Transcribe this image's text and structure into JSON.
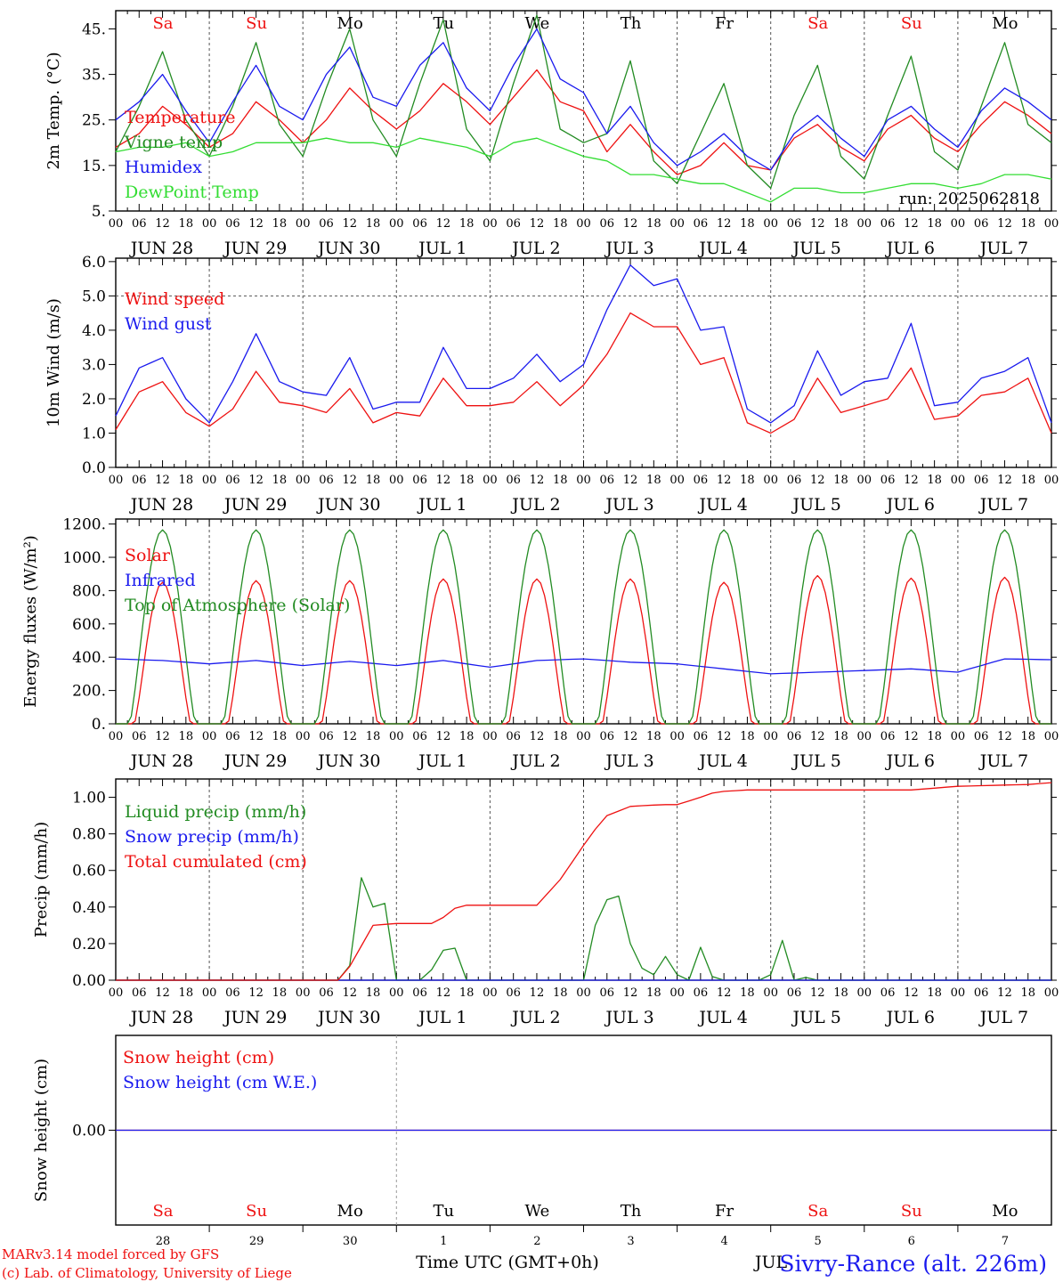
{
  "colors": {
    "red": "#ee1111",
    "green": "#228b22",
    "blue": "#1a1aee",
    "lightgreen": "#33dd33",
    "axis": "#000000",
    "grid": "#555555"
  },
  "footer": {
    "line1": "MARv3.14 model forced by GFS",
    "line2": "(c) Lab. of Climatology, University of Liege",
    "axis_title": "Time UTC (GMT+0h)",
    "station": "Sivry-Rance (alt. 226m)",
    "month_overlay": "JUL"
  },
  "days": {
    "weekdays": [
      "Sa",
      "Su",
      "Mo",
      "Tu",
      "We",
      "Th",
      "Fr",
      "Sa",
      "Su",
      "Mo"
    ],
    "weekend": [
      true,
      true,
      false,
      false,
      false,
      false,
      false,
      true,
      true,
      false
    ],
    "date_labels": [
      "JUN 28",
      "JUN 29",
      "JUN 30",
      "JUL  1",
      "JUL  2",
      "JUL  3",
      "JUL  4",
      "JUL  5",
      "JUL  6",
      "JUL  7"
    ],
    "day_numbers": [
      "28",
      "29",
      "30",
      "1",
      "2",
      "3",
      "4",
      "5",
      "6",
      "7"
    ],
    "hour_ticks": [
      "00",
      "06",
      "12",
      "18"
    ],
    "end_tick": "00"
  },
  "chart_data": [
    {
      "type": "line",
      "panel": "temperature",
      "ylabel": "2m Temp. (°C)",
      "ylim": [
        5,
        49
      ],
      "yticks": [
        5,
        15,
        25,
        35,
        45
      ],
      "ytick_labels": [
        "5.",
        "15.",
        "25.",
        "35.",
        "45."
      ],
      "run_label": "run: 2025062818",
      "x_hours": [
        0,
        6,
        12,
        18,
        24,
        30,
        36,
        42,
        48,
        54,
        60,
        66,
        72,
        78,
        84,
        90,
        96,
        102,
        108,
        114,
        120,
        126,
        132,
        138,
        144,
        150,
        156,
        162,
        168,
        174,
        180,
        186,
        192,
        198,
        204,
        210,
        216,
        222,
        228,
        234,
        240
      ],
      "series": [
        {
          "name": "Temperature",
          "color": "red",
          "values": [
            19,
            22,
            28,
            24,
            19,
            22,
            29,
            25,
            20,
            25,
            32,
            27,
            23,
            27,
            33,
            29,
            24,
            30,
            36,
            29,
            27,
            18,
            24,
            18,
            13,
            15,
            20,
            15,
            14,
            21,
            24,
            19,
            16,
            23,
            26,
            21,
            18,
            24,
            29,
            26,
            22
          ]
        },
        {
          "name": "Vigne temp",
          "color": "green",
          "values": [
            18,
            28,
            40,
            25,
            17,
            28,
            42,
            24,
            17,
            32,
            45,
            25,
            17,
            33,
            47,
            23,
            16,
            33,
            48,
            23,
            20,
            22,
            38,
            16,
            11,
            22,
            33,
            15,
            10,
            26,
            37,
            17,
            12,
            26,
            39,
            18,
            14,
            28,
            42,
            24,
            20
          ]
        },
        {
          "name": "Humidex",
          "color": "blue",
          "values": [
            25,
            29,
            35,
            27,
            20,
            29,
            37,
            28,
            25,
            35,
            41,
            30,
            28,
            37,
            42,
            32,
            27,
            37,
            45,
            34,
            31,
            22,
            28,
            20,
            15,
            18,
            22,
            17,
            14,
            22,
            26,
            21,
            17,
            25,
            28,
            23,
            19,
            27,
            32,
            29,
            25
          ]
        },
        {
          "name": "DewPoint Temp",
          "color": "lightgreen",
          "values": [
            18,
            19,
            19,
            20,
            17,
            18,
            20,
            20,
            20,
            21,
            20,
            20,
            19,
            21,
            20,
            19,
            17,
            20,
            21,
            19,
            17,
            16,
            13,
            13,
            12,
            11,
            11,
            9,
            7,
            10,
            10,
            9,
            9,
            10,
            11,
            11,
            10,
            11,
            13,
            13,
            12
          ]
        }
      ]
    },
    {
      "type": "line",
      "panel": "wind",
      "ylabel": "10m Wind (m/s)",
      "ylim": [
        0,
        6.1
      ],
      "yticks": [
        0,
        1,
        2,
        3,
        4,
        5,
        6
      ],
      "ytick_labels": [
        "0.0",
        "1.0",
        "2.0",
        "3.0",
        "4.0",
        "5.0",
        "6.0"
      ],
      "ref_line": 5.0,
      "x_hours": [
        0,
        6,
        12,
        18,
        24,
        30,
        36,
        42,
        48,
        54,
        60,
        66,
        72,
        78,
        84,
        90,
        96,
        102,
        108,
        114,
        120,
        126,
        132,
        138,
        144,
        150,
        156,
        162,
        168,
        174,
        180,
        186,
        192,
        198,
        204,
        210,
        216,
        222,
        228,
        234,
        240
      ],
      "series": [
        {
          "name": "Wind speed",
          "color": "red",
          "values": [
            1.1,
            2.2,
            2.5,
            1.6,
            1.2,
            1.7,
            2.8,
            1.9,
            1.8,
            1.6,
            2.3,
            1.3,
            1.6,
            1.5,
            2.6,
            1.8,
            1.8,
            1.9,
            2.5,
            1.8,
            2.4,
            3.3,
            4.5,
            4.1,
            4.1,
            3.0,
            3.2,
            1.3,
            1.0,
            1.4,
            2.6,
            1.6,
            1.8,
            2.0,
            2.9,
            1.4,
            1.5,
            2.1,
            2.2,
            2.6,
            1.0
          ]
        },
        {
          "name": "Wind gust",
          "color": "blue",
          "values": [
            1.5,
            2.9,
            3.2,
            2.0,
            1.3,
            2.5,
            3.9,
            2.5,
            2.2,
            2.1,
            3.2,
            1.7,
            1.9,
            1.9,
            3.5,
            2.3,
            2.3,
            2.6,
            3.3,
            2.5,
            3.0,
            4.6,
            5.9,
            5.3,
            5.5,
            4.0,
            4.1,
            1.7,
            1.3,
            1.8,
            3.4,
            2.1,
            2.5,
            2.6,
            4.2,
            1.8,
            1.9,
            2.6,
            2.8,
            3.2,
            1.3
          ]
        }
      ]
    },
    {
      "type": "line",
      "panel": "energy",
      "ylabel": "Energy fluxes (W/m²)",
      "ylim": [
        0,
        1230
      ],
      "yticks": [
        0,
        200,
        400,
        600,
        800,
        1000,
        1200
      ],
      "ytick_labels": [
        "0.",
        "200.",
        "400.",
        "600.",
        "800.",
        "1000.",
        "1200."
      ],
      "daily_peak_hour": 12,
      "series": [
        {
          "name": "Solar",
          "color": "red",
          "daily_peaks": [
            850,
            860,
            860,
            870,
            870,
            870,
            850,
            890,
            875,
            880
          ]
        },
        {
          "name": "Infrared",
          "color": "blue",
          "x_hours": [
            0,
            12,
            24,
            36,
            48,
            60,
            72,
            84,
            96,
            108,
            120,
            132,
            144,
            156,
            168,
            180,
            192,
            204,
            216,
            228,
            240
          ],
          "values": [
            390,
            380,
            360,
            380,
            350,
            375,
            350,
            380,
            340,
            380,
            390,
            370,
            360,
            330,
            300,
            310,
            320,
            330,
            310,
            390,
            385
          ]
        },
        {
          "name": "Top of Atmosphere (Solar)",
          "color": "green",
          "daily_peaks": [
            1165,
            1165,
            1165,
            1165,
            1165,
            1165,
            1165,
            1165,
            1165,
            1165
          ]
        }
      ]
    },
    {
      "type": "line",
      "panel": "precip",
      "ylabel": "Precip (mm/h)",
      "ylim": [
        0,
        1.1
      ],
      "yticks": [
        0,
        0.2,
        0.4,
        0.6,
        0.8,
        1.0
      ],
      "ytick_labels": [
        "0.00",
        "0.20",
        "0.40",
        "0.60",
        "0.80",
        "1.00"
      ],
      "series": [
        {
          "name": "Liquid precip (mm/h)",
          "color": "green",
          "x_hours": [
            0,
            57,
            60,
            63,
            66,
            69,
            72,
            80,
            83,
            86,
            88,
            90,
            120,
            124,
            126,
            128,
            130,
            132,
            134,
            136,
            138,
            140,
            142,
            144,
            146,
            148,
            150,
            152,
            154,
            156,
            166,
            168,
            170,
            174,
            176,
            178,
            180,
            240
          ],
          "values": [
            0,
            0,
            0.08,
            0.56,
            0.4,
            0.42,
            0,
            0,
            0.17,
            0.15,
            0.2,
            0,
            0,
            0.4,
            0.44,
            0.52,
            0.4,
            0.2,
            0.03,
            0.1,
            0.03,
            0.12,
            0.14,
            0.03,
            0,
            0,
            0.18,
            0,
            0.04,
            0,
            0,
            0.03,
            0.29,
            0,
            0.03,
            0,
            0,
            0
          ]
        },
        {
          "name": "Snow precip (mm/h)",
          "color": "blue",
          "x_hours": [
            0,
            240
          ],
          "values": [
            0,
            0
          ]
        },
        {
          "name": "Total cumulated (cm)",
          "color": "red",
          "x_hours": [
            0,
            58,
            66,
            72,
            82,
            88,
            96,
            108,
            114,
            122,
            126,
            132,
            140,
            144,
            150,
            154,
            162,
            204,
            216,
            234,
            240
          ],
          "values": [
            0,
            0,
            0.3,
            0.31,
            0.31,
            0.41,
            0.41,
            0.41,
            0.55,
            0.8,
            0.9,
            0.95,
            0.96,
            0.96,
            1.0,
            1.03,
            1.04,
            1.04,
            1.06,
            1.07,
            1.08
          ]
        }
      ]
    },
    {
      "type": "line",
      "panel": "snow",
      "ylabel": "Snow height (cm)",
      "ylim": [
        -1,
        1
      ],
      "yticks": [
        0
      ],
      "ytick_labels": [
        "0.00"
      ],
      "series": [
        {
          "name": "Snow height (cm)",
          "color": "red",
          "x_hours": [
            0,
            240
          ],
          "values": [
            0,
            0
          ]
        },
        {
          "name": "Snow height (cm W.E.)",
          "color": "blue",
          "x_hours": [
            0,
            240
          ],
          "values": [
            0,
            0
          ]
        }
      ]
    }
  ]
}
